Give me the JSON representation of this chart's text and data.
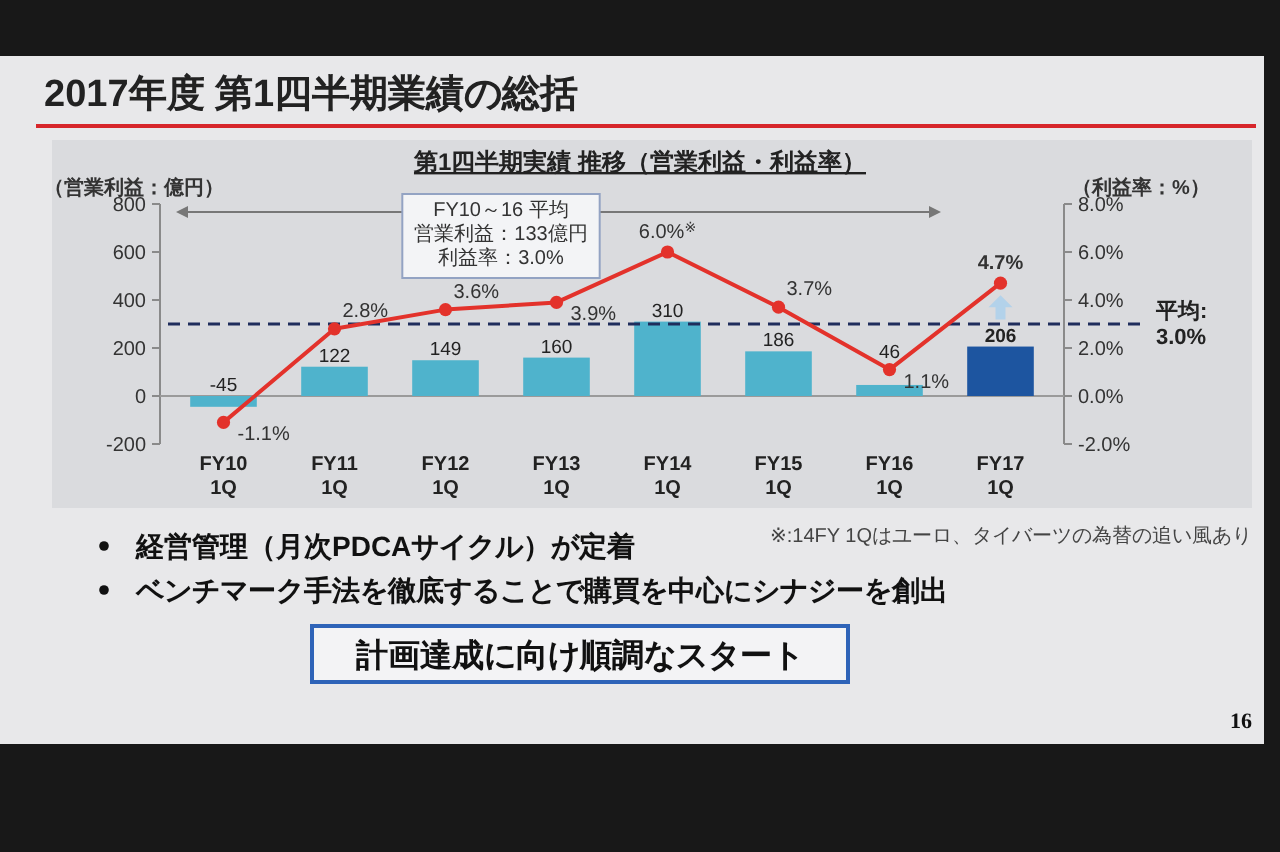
{
  "chart_data": {
    "type": "bar",
    "title": "2017年度 第1四半期業績の総括",
    "subtitle": "第1四半期実績 推移（営業利益・利益率）",
    "ylabel": "（営業利益：億円）",
    "y2label": "（利益率：%）",
    "categories": [
      "FY10 1Q",
      "FY11 1Q",
      "FY12 1Q",
      "FY13 1Q",
      "FY14 1Q",
      "FY15 1Q",
      "FY16 1Q",
      "FY17 1Q"
    ],
    "series": [
      {
        "colors": [
          "#4fb3cc",
          "#4fb3cc",
          "#4fb3cc",
          "#4fb3cc",
          "#4fb3cc",
          "#4fb3cc",
          "#4fb3cc",
          "#1d55a0"
        ],
        "values": [
          -45,
          122,
          149,
          160,
          310,
          186,
          46,
          206
        ],
        "value_labels": [
          "-45",
          "122",
          "149",
          "160",
          "310",
          "186",
          "46",
          "206"
        ]
      },
      {
        "type": "line",
        "axis": "y2",
        "color": "#e3322b",
        "values": [
          -1.1,
          2.8,
          3.6,
          3.9,
          6.0,
          3.7,
          1.1,
          4.7
        ],
        "value_labels": [
          "-1.1%",
          "2.8%",
          "3.6%",
          "3.9%",
          "6.0%$^{※}$",
          "3.7%",
          "1.1%",
          "4.7%"
        ]
      }
    ],
    "marker": "circle",
    "ylim": [
      -200,
      800
    ],
    "yticks": [
      -200,
      0,
      200,
      400,
      600,
      800
    ],
    "y2lim": [
      -2,
      8
    ],
    "y2ticks": [
      {
        "value": -2,
        "label": "-2.0%"
      },
      {
        "value": 0,
        "label": "0.0%"
      },
      {
        "value": 2,
        "label": "2.0%"
      },
      {
        "value": 4,
        "label": "4.0%"
      },
      {
        "value": 6,
        "label": "6.0%"
      },
      {
        "value": 8,
        "label": "8.0%"
      }
    ],
    "ref_lines": [
      {
        "axis": "y2",
        "value": 3.0,
        "label": "平均: 3.0%",
        "color": "#1f2d5c",
        "line_style": "dashed"
      }
    ],
    "annotations": [
      "FY10～16 平均",
      "営業利益：133億円",
      "利益率：3.0%",
      "※:14FY 1Qはユーロ、タイバーツの為替の追い風あり",
      "経営管理（月次PDCAサイクル）が定着",
      "ベンチマーク手法を徹底することで購買を中心にシナジーを創出",
      "計画達成に向け順調なスタート",
      "16"
    ]
  }
}
